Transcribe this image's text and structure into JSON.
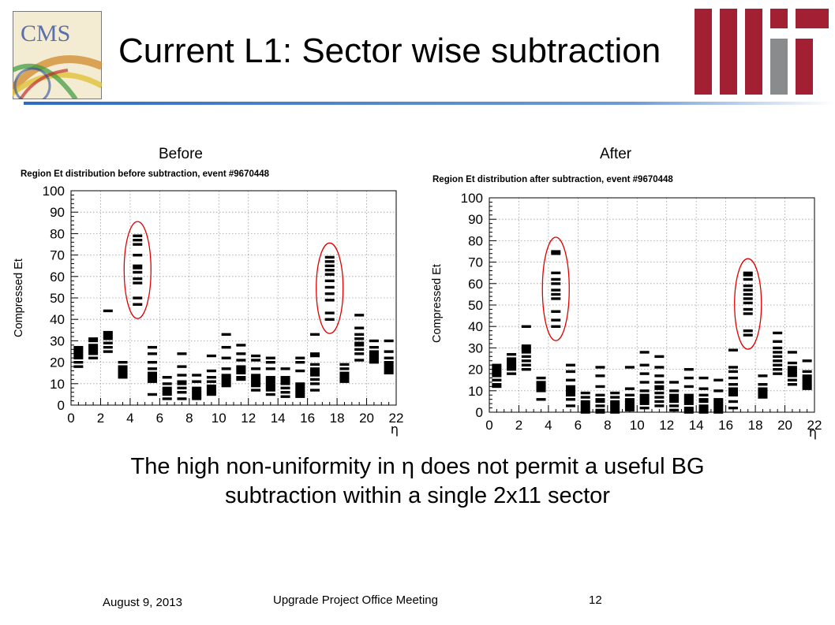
{
  "slide": {
    "title": "Current L1: Sector wise subtraction",
    "before_caption": "Before",
    "after_caption": "After",
    "body_line1": "The high non-uniformity in η does not permit a useful BG",
    "body_line2": "subtraction within a single 2x11 sector",
    "footer_date": "August 9, 2013",
    "footer_meeting": "Upgrade Project Office Meeting",
    "footer_page": "12",
    "logos": {
      "cms_text": "CMS",
      "mit": "MIT"
    },
    "colors": {
      "rule": "#2e6cc0",
      "mit_red": "#a31f34",
      "mit_gray": "#8a8b8c",
      "ellipse": "#e00000"
    }
  },
  "chart_data": [
    {
      "type": "scatter",
      "title": "Region Et distribution before subtraction, event #9670448",
      "xlabel": "η",
      "ylabel": "Compressed Et",
      "xlim": [
        0,
        22
      ],
      "ylim": [
        0,
        100
      ],
      "xticks": [
        0,
        2,
        4,
        6,
        8,
        10,
        12,
        14,
        16,
        18,
        20,
        22
      ],
      "yticks": [
        0,
        10,
        20,
        30,
        40,
        50,
        60,
        70,
        80,
        90,
        100
      ],
      "grid": true,
      "highlighted_eta": [
        4.5,
        17.5
      ],
      "points": [
        {
          "eta": 0.5,
          "et": [
            18,
            20,
            22,
            23,
            24,
            25,
            26,
            27
          ]
        },
        {
          "eta": 1.5,
          "et": [
            22,
            24,
            25,
            26,
            27,
            28,
            30,
            31
          ]
        },
        {
          "eta": 2.5,
          "et": [
            25,
            27,
            29,
            31,
            32,
            33,
            34,
            44
          ]
        },
        {
          "eta": 3.5,
          "et": [
            13,
            14,
            15,
            16,
            17,
            18,
            20
          ]
        },
        {
          "eta": 4.5,
          "et": [
            47,
            50,
            57,
            59,
            62,
            64,
            65,
            70,
            75,
            77,
            79
          ]
        },
        {
          "eta": 5.5,
          "et": [
            5,
            11,
            12,
            13,
            14,
            15,
            17,
            20,
            24,
            27
          ]
        },
        {
          "eta": 6.5,
          "et": [
            3,
            5,
            6,
            7,
            8,
            10,
            13
          ]
        },
        {
          "eta": 7.5,
          "et": [
            3,
            6,
            8,
            10,
            11,
            14,
            18,
            24
          ]
        },
        {
          "eta": 8.5,
          "et": [
            3,
            4,
            5,
            6,
            7,
            8,
            11,
            14
          ]
        },
        {
          "eta": 9.5,
          "et": [
            5,
            6,
            7,
            8,
            9,
            11,
            13,
            16,
            23
          ]
        },
        {
          "eta": 10.5,
          "et": [
            9,
            10,
            11,
            12,
            13,
            14,
            17,
            22,
            27,
            33
          ]
        },
        {
          "eta": 11.5,
          "et": [
            12,
            13,
            15,
            16,
            17,
            18,
            21,
            24,
            28
          ]
        },
        {
          "eta": 12.5,
          "et": [
            7,
            9,
            10,
            11,
            12,
            13,
            14,
            17,
            21,
            23
          ]
        },
        {
          "eta": 13.5,
          "et": [
            5,
            7,
            8,
            9,
            10,
            11,
            12,
            13,
            17,
            20,
            22
          ]
        },
        {
          "eta": 14.5,
          "et": [
            4,
            6,
            8,
            10,
            11,
            12,
            13,
            17
          ]
        },
        {
          "eta": 15.5,
          "et": [
            4,
            5,
            6,
            7,
            8,
            9,
            10,
            16,
            20,
            22
          ]
        },
        {
          "eta": 16.5,
          "et": [
            7,
            10,
            12,
            14,
            15,
            16,
            17,
            19,
            23,
            24,
            33
          ]
        },
        {
          "eta": 17.5,
          "et": [
            40,
            43,
            49,
            52,
            55,
            58,
            61,
            63,
            65,
            67,
            69
          ]
        },
        {
          "eta": 18.5,
          "et": [
            11,
            12,
            13,
            14,
            15,
            17,
            19
          ]
        },
        {
          "eta": 19.5,
          "et": [
            21,
            24,
            26,
            28,
            29,
            31,
            33,
            36,
            42
          ]
        },
        {
          "eta": 20.5,
          "et": [
            20,
            21,
            22,
            23,
            24,
            25,
            27,
            30
          ]
        },
        {
          "eta": 21.5,
          "et": [
            15,
            16,
            17,
            18,
            19,
            20,
            22,
            25,
            30
          ]
        }
      ]
    },
    {
      "type": "scatter",
      "title": "Region Et distribution after subtraction, event #9670448",
      "xlabel": "η",
      "ylabel": "Compressed Et",
      "xlim": [
        0,
        22
      ],
      "ylim": [
        0,
        100
      ],
      "xticks": [
        0,
        2,
        4,
        6,
        8,
        10,
        12,
        14,
        16,
        18,
        20,
        22
      ],
      "yticks": [
        0,
        10,
        20,
        30,
        40,
        50,
        60,
        70,
        80,
        90,
        100
      ],
      "grid": true,
      "highlighted_eta": [
        4.5,
        17.5
      ],
      "points": [
        {
          "eta": 0.5,
          "et": [
            12,
            13,
            15,
            17,
            18,
            19,
            20,
            21,
            22
          ]
        },
        {
          "eta": 1.5,
          "et": [
            18,
            20,
            21,
            22,
            23,
            24,
            25,
            27
          ]
        },
        {
          "eta": 2.5,
          "et": [
            20,
            22,
            24,
            26,
            28,
            29,
            30,
            31,
            40
          ]
        },
        {
          "eta": 3.5,
          "et": [
            6,
            10,
            11,
            12,
            13,
            14,
            16
          ]
        },
        {
          "eta": 4.5,
          "et": [
            40,
            43,
            47,
            53,
            55,
            57,
            60,
            62,
            65,
            74,
            75
          ]
        },
        {
          "eta": 5.5,
          "et": [
            3,
            6,
            8,
            9,
            10,
            11,
            12,
            15,
            19,
            22
          ]
        },
        {
          "eta": 6.5,
          "et": [
            0,
            1,
            2,
            3,
            4,
            5,
            7,
            9
          ]
        },
        {
          "eta": 7.5,
          "et": [
            0,
            1,
            3,
            5,
            6,
            8,
            12,
            17,
            21
          ]
        },
        {
          "eta": 8.5,
          "et": [
            0,
            1,
            2,
            3,
            4,
            5,
            7,
            9
          ]
        },
        {
          "eta": 9.5,
          "et": [
            1,
            2,
            3,
            4,
            5,
            6,
            8,
            11,
            21
          ]
        },
        {
          "eta": 10.5,
          "et": [
            2,
            4,
            5,
            6,
            7,
            8,
            10,
            14,
            18,
            22,
            28
          ]
        },
        {
          "eta": 11.5,
          "et": [
            3,
            5,
            7,
            9,
            11,
            12,
            14,
            17,
            21,
            26
          ]
        },
        {
          "eta": 12.5,
          "et": [
            1,
            3,
            5,
            6,
            7,
            8,
            10,
            14
          ]
        },
        {
          "eta": 13.5,
          "et": [
            0,
            1,
            2,
            4,
            5,
            6,
            7,
            8,
            12,
            16,
            20
          ]
        },
        {
          "eta": 14.5,
          "et": [
            0,
            1,
            2,
            3,
            5,
            6,
            8,
            11,
            16
          ]
        },
        {
          "eta": 15.5,
          "et": [
            0,
            1,
            2,
            3,
            4,
            5,
            6,
            10,
            15
          ]
        },
        {
          "eta": 16.5,
          "et": [
            2,
            5,
            8,
            9,
            10,
            11,
            13,
            16,
            19,
            21,
            29
          ]
        },
        {
          "eta": 17.5,
          "et": [
            36,
            38,
            46,
            48,
            51,
            53,
            55,
            57,
            59,
            62,
            64,
            65
          ]
        },
        {
          "eta": 18.5,
          "et": [
            7,
            8,
            9,
            10,
            11,
            13,
            17
          ]
        },
        {
          "eta": 19.5,
          "et": [
            18,
            20,
            22,
            24,
            26,
            28,
            30,
            33,
            37
          ]
        },
        {
          "eta": 20.5,
          "et": [
            13,
            15,
            17,
            18,
            19,
            20,
            21,
            23,
            28
          ]
        },
        {
          "eta": 21.5,
          "et": [
            11,
            12,
            13,
            14,
            15,
            16,
            17,
            19,
            24
          ]
        }
      ]
    }
  ]
}
